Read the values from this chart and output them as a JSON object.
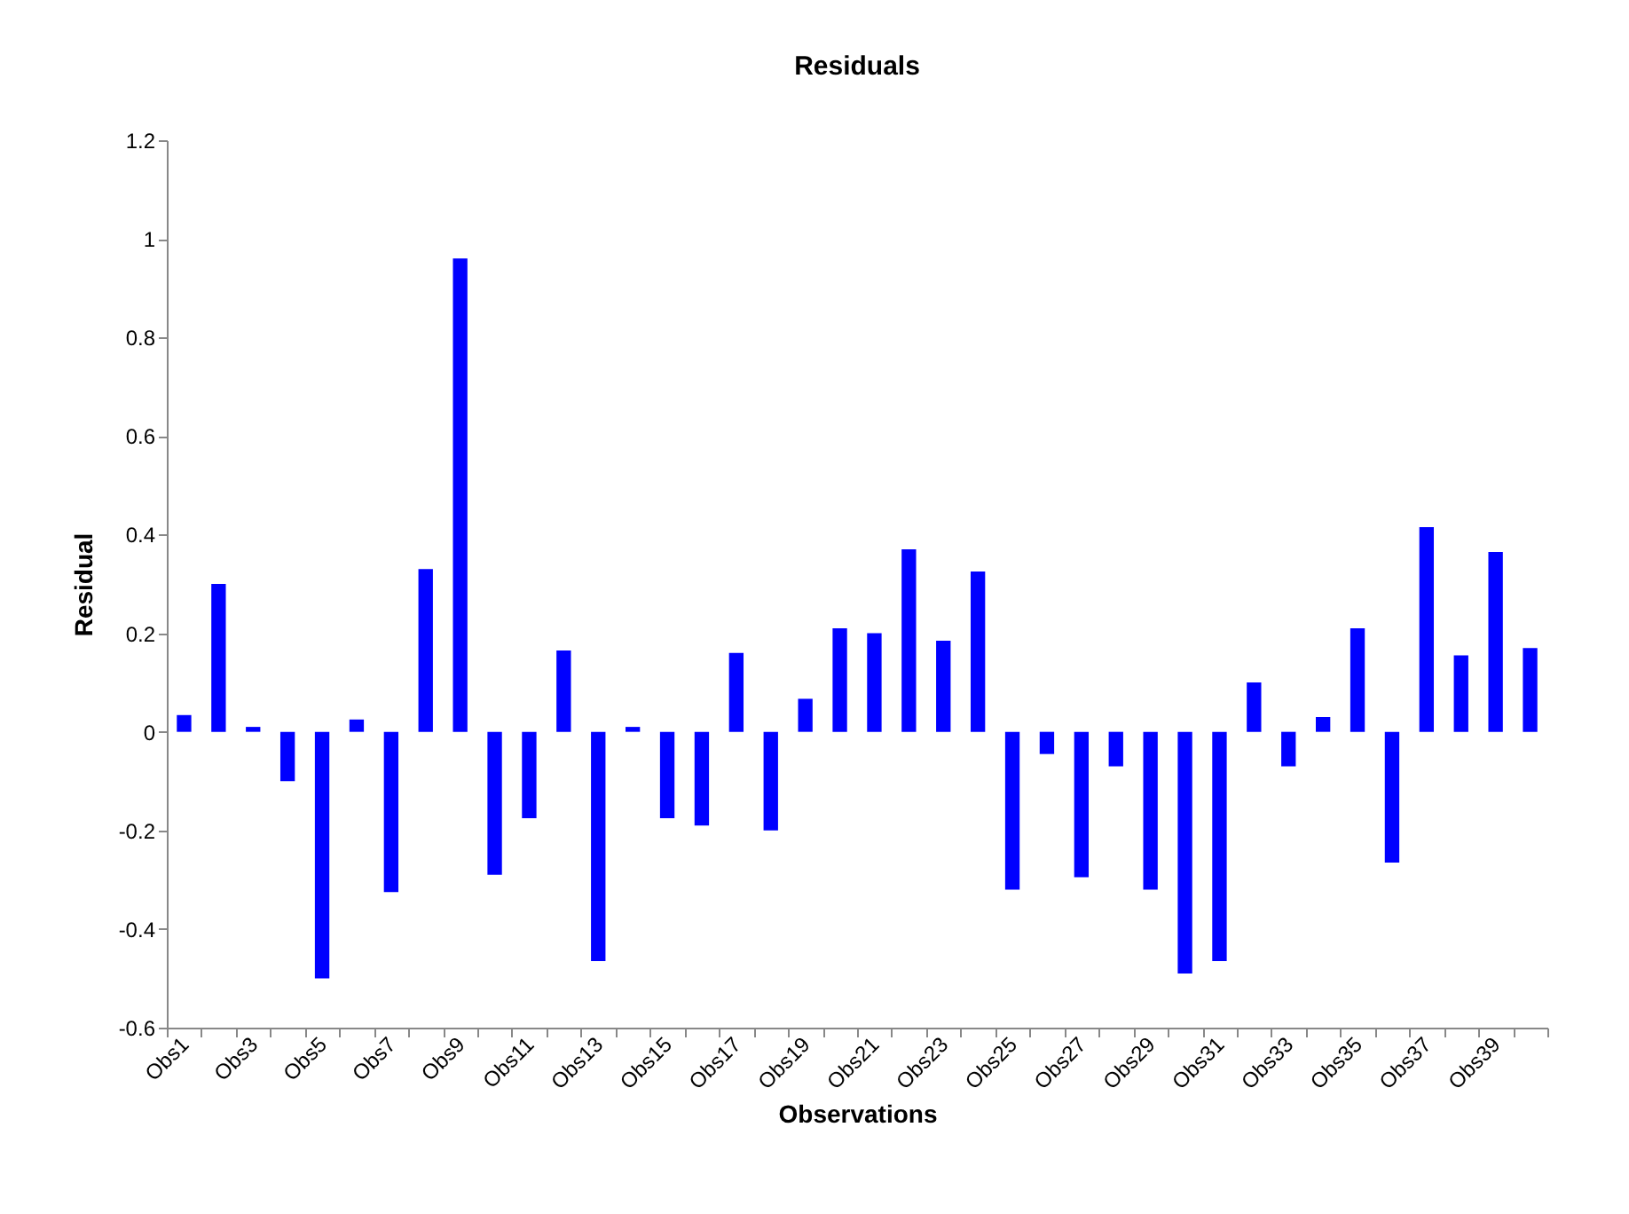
{
  "chart_data": {
    "type": "bar",
    "title": "Residuals",
    "xlabel": "Observations",
    "ylabel": "Residual",
    "categories": [
      "Obs1",
      null,
      "Obs3",
      null,
      "Obs5",
      null,
      "Obs7",
      null,
      "Obs9",
      null,
      "Obs11",
      null,
      "Obs13",
      null,
      "Obs15",
      null,
      "Obs17",
      null,
      "Obs19",
      null,
      "Obs21",
      null,
      "Obs23",
      null,
      "Obs25",
      null,
      "Obs27",
      null,
      "Obs29",
      null,
      "Obs31",
      null,
      "Obs33",
      null,
      "Obs35",
      null,
      "Obs37",
      null,
      "Obs39",
      null
    ],
    "values": [
      0.034,
      0.3,
      0.01,
      -0.1,
      -0.5,
      0.025,
      -0.325,
      0.33,
      0.96,
      -0.29,
      -0.175,
      0.165,
      -0.465,
      0.01,
      -0.175,
      -0.19,
      0.16,
      -0.2,
      0.067,
      0.21,
      0.2,
      0.37,
      0.185,
      0.325,
      -0.32,
      -0.045,
      -0.295,
      -0.07,
      -0.32,
      -0.49,
      -0.465,
      0.1,
      -0.07,
      0.03,
      0.21,
      -0.265,
      0.415,
      0.155,
      0.365,
      0.17
    ],
    "color": "#0000ff",
    "ylim": [
      -0.6,
      1.2
    ],
    "yticks": [
      -0.6,
      -0.4,
      -0.2,
      0,
      0.2,
      0.4,
      0.6,
      0.8,
      1,
      1.2
    ],
    "grid": false
  }
}
